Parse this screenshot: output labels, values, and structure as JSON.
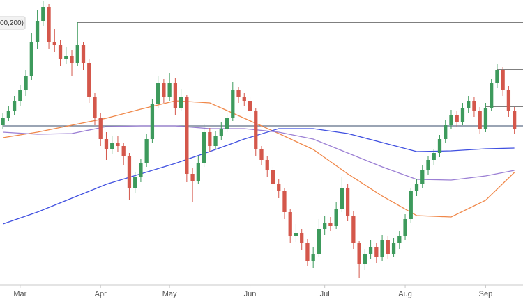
{
  "chart_data": {
    "type": "candlestick",
    "legend_text": "00,200)",
    "up_color": "#3d9a5c",
    "down_color": "#d4574b",
    "xlim": [
      -0.5,
      90.5
    ],
    "ylim": [
      0,
      410
    ],
    "xticks": [
      {
        "value": 3,
        "label": "Mar"
      },
      {
        "value": 17,
        "label": "Apr"
      },
      {
        "value": 29,
        "label": "May"
      },
      {
        "value": 43,
        "label": "Jun"
      },
      {
        "value": 56,
        "label": "Jul"
      },
      {
        "value": 70,
        "label": "Aug"
      },
      {
        "value": 84,
        "label": "Sep"
      }
    ],
    "candles": [
      [
        230,
        248,
        225,
        240
      ],
      [
        240,
        258,
        236,
        250
      ],
      [
        250,
        272,
        244,
        265
      ],
      [
        265,
        288,
        258,
        280
      ],
      [
        280,
        310,
        272,
        300
      ],
      [
        300,
        362,
        295,
        350
      ],
      [
        350,
        395,
        340,
        380
      ],
      [
        380,
        408,
        372,
        400
      ],
      [
        400,
        404,
        340,
        350
      ],
      [
        350,
        368,
        335,
        345
      ],
      [
        345,
        352,
        315,
        325
      ],
      [
        325,
        342,
        318,
        330
      ],
      [
        330,
        338,
        300,
        320
      ],
      [
        320,
        378,
        315,
        345
      ],
      [
        345,
        350,
        310,
        320
      ],
      [
        320,
        325,
        262,
        270
      ],
      [
        270,
        276,
        230,
        240
      ],
      [
        240,
        248,
        200,
        210
      ],
      [
        210,
        220,
        180,
        195
      ],
      [
        195,
        215,
        188,
        205
      ],
      [
        205,
        215,
        192,
        200
      ],
      [
        200,
        205,
        172,
        185
      ],
      [
        185,
        190,
        122,
        140
      ],
      [
        140,
        162,
        132,
        155
      ],
      [
        155,
        182,
        148,
        175
      ],
      [
        175,
        218,
        170,
        210
      ],
      [
        210,
        268,
        205,
        260
      ],
      [
        260,
        300,
        255,
        290
      ],
      [
        290,
        296,
        262,
        270
      ],
      [
        270,
        305,
        265,
        290
      ],
      [
        290,
        298,
        245,
        255
      ],
      [
        255,
        282,
        250,
        270
      ],
      [
        270,
        274,
        148,
        160
      ],
      [
        160,
        168,
        120,
        150
      ],
      [
        150,
        185,
        145,
        175
      ],
      [
        175,
        232,
        170,
        220
      ],
      [
        220,
        226,
        192,
        200
      ],
      [
        200,
        222,
        195,
        215
      ],
      [
        215,
        235,
        208,
        225
      ],
      [
        225,
        248,
        220,
        240
      ],
      [
        240,
        292,
        236,
        280
      ],
      [
        280,
        285,
        262,
        270
      ],
      [
        270,
        276,
        258,
        265
      ],
      [
        265,
        270,
        240,
        250
      ],
      [
        250,
        255,
        185,
        195
      ],
      [
        195,
        200,
        172,
        180
      ],
      [
        180,
        186,
        155,
        165
      ],
      [
        165,
        170,
        135,
        145
      ],
      [
        145,
        152,
        125,
        135
      ],
      [
        135,
        140,
        95,
        105
      ],
      [
        105,
        110,
        60,
        70
      ],
      [
        70,
        88,
        62,
        75
      ],
      [
        75,
        80,
        50,
        60
      ],
      [
        60,
        66,
        28,
        35
      ],
      [
        35,
        55,
        25,
        45
      ],
      [
        45,
        95,
        40,
        80
      ],
      [
        80,
        100,
        72,
        90
      ],
      [
        90,
        98,
        78,
        85
      ],
      [
        85,
        120,
        80,
        110
      ],
      [
        110,
        155,
        105,
        140
      ],
      [
        140,
        145,
        92,
        100
      ],
      [
        100,
        106,
        52,
        60
      ],
      [
        60,
        64,
        10,
        30
      ],
      [
        30,
        52,
        22,
        45
      ],
      [
        45,
        65,
        38,
        55
      ],
      [
        55,
        60,
        32,
        40
      ],
      [
        40,
        72,
        35,
        65
      ],
      [
        65,
        70,
        38,
        45
      ],
      [
        45,
        68,
        40,
        60
      ],
      [
        60,
        78,
        52,
        70
      ],
      [
        70,
        102,
        65,
        95
      ],
      [
        95,
        140,
        90,
        135
      ],
      [
        135,
        152,
        128,
        145
      ],
      [
        145,
        172,
        140,
        165
      ],
      [
        165,
        186,
        158,
        180
      ],
      [
        180,
        196,
        172,
        190
      ],
      [
        190,
        216,
        184,
        210
      ],
      [
        210,
        238,
        204,
        230
      ],
      [
        230,
        252,
        224,
        245
      ],
      [
        245,
        250,
        228,
        235
      ],
      [
        235,
        262,
        230,
        255
      ],
      [
        255,
        272,
        248,
        265
      ],
      [
        265,
        270,
        242,
        250
      ],
      [
        250,
        256,
        218,
        225
      ],
      [
        225,
        262,
        220,
        255
      ],
      [
        255,
        296,
        250,
        290
      ],
      [
        290,
        318,
        284,
        310
      ],
      [
        310,
        314,
        272,
        280
      ],
      [
        280,
        286,
        242,
        250
      ],
      [
        250,
        256,
        218,
        225
      ]
    ],
    "ma_x": [
      0,
      6,
      12,
      18,
      24,
      30,
      36,
      42,
      48,
      54,
      60,
      66,
      72,
      78,
      84,
      89
    ],
    "series": [
      {
        "color": "#f0884a",
        "values": [
          212,
          220,
          230,
          240,
          253,
          265,
          262,
          240,
          218,
          195,
          160,
          128,
          100,
          98,
          122,
          162
        ]
      },
      {
        "color": "#9b7fd4",
        "values": [
          220,
          217,
          218,
          228,
          229,
          229,
          225,
          225,
          220,
          210,
          190,
          170,
          152,
          151,
          157,
          165
        ]
      },
      {
        "color": "#3f4fe0",
        "values": [
          88,
          105,
          125,
          145,
          160,
          175,
          192,
          210,
          225,
          225,
          218,
          205,
          192,
          193,
          196,
          197
        ]
      }
    ],
    "levels": [
      {
        "value": 229,
        "start": 0,
        "color": "#5d6e86"
      },
      {
        "value": 378,
        "start": 13,
        "color": "#333333"
      },
      {
        "value": 310,
        "start": 86,
        "color": "#333333"
      },
      {
        "value": 257,
        "start": 84,
        "color": "#333333"
      }
    ]
  }
}
